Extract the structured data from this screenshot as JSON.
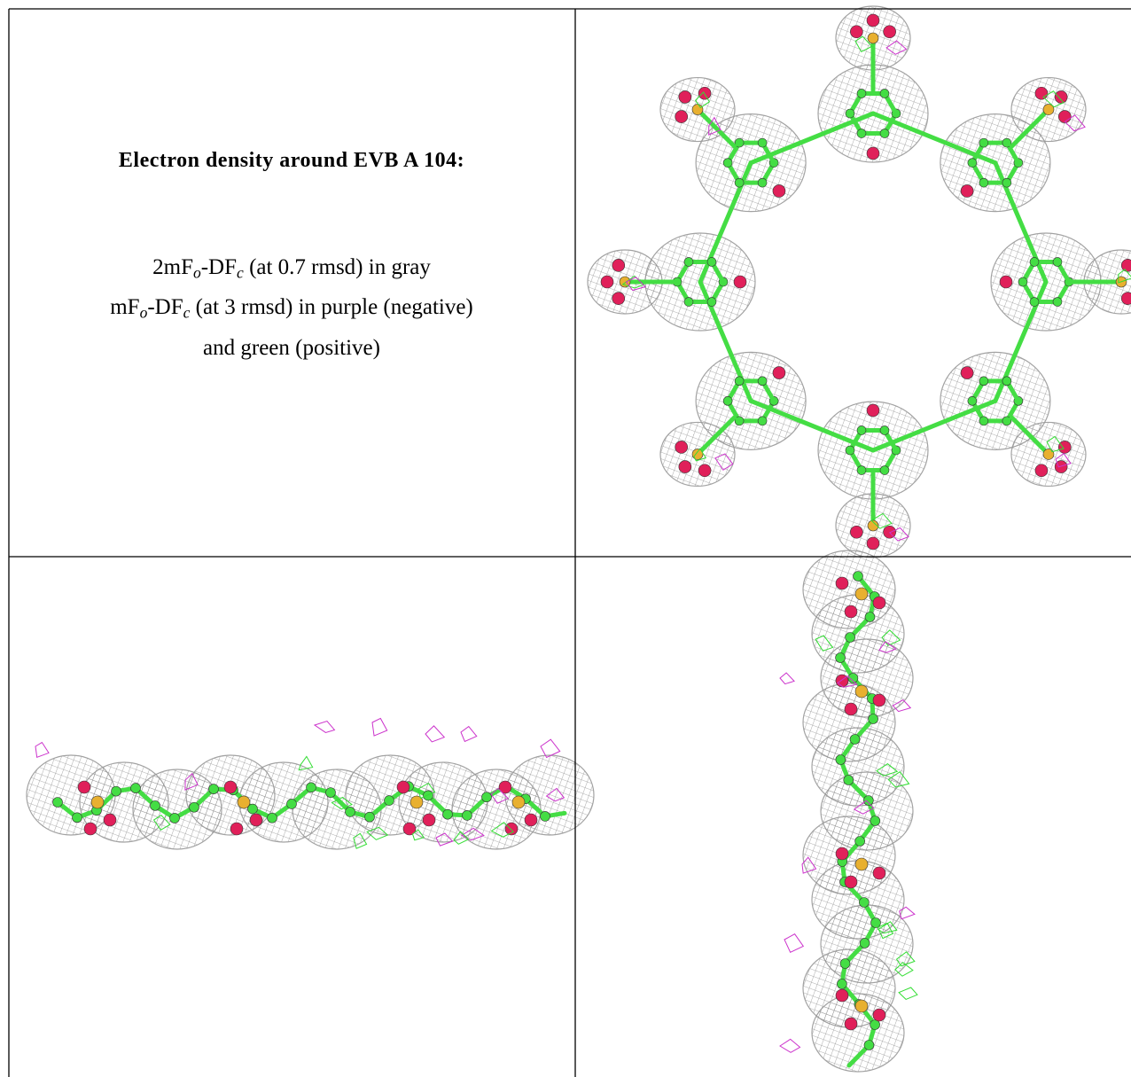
{
  "caption": {
    "title": "Electron density around EVB A 104:",
    "line1": [
      "2mF",
      "o",
      "-DF",
      "c",
      " (at 0.7 rmsd) in gray"
    ],
    "line2": [
      "mF",
      "o",
      "-DF",
      "c",
      " (at 3 rmsd) in purple (negative)"
    ],
    "line3": "and green (positive)"
  }
}
